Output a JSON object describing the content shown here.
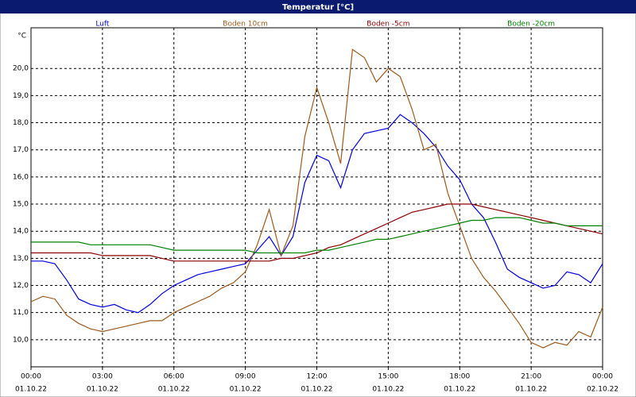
{
  "chart_data": {
    "type": "line",
    "title": "Temperatur [°C]",
    "y_unit": "°C",
    "x": [
      0,
      0.5,
      1,
      1.5,
      2,
      2.5,
      3,
      3.5,
      4,
      4.5,
      5,
      5.5,
      6,
      6.5,
      7,
      7.5,
      8,
      8.5,
      9,
      9.5,
      10,
      10.5,
      11,
      11.5,
      12,
      12.5,
      13,
      13.5,
      14,
      14.5,
      15,
      15.5,
      16,
      16.5,
      17,
      17.5,
      18,
      18.5,
      19,
      19.5,
      20,
      20.5,
      21,
      21.5,
      22,
      22.5,
      23,
      23.5,
      24
    ],
    "series": [
      {
        "name": "Luft",
        "color": "#0000dd",
        "values": [
          12.9,
          12.9,
          12.8,
          12.2,
          11.5,
          11.3,
          11.2,
          11.3,
          11.1,
          11.0,
          11.3,
          11.7,
          12.0,
          12.2,
          12.4,
          12.5,
          12.6,
          12.7,
          12.8,
          13.3,
          13.8,
          13.1,
          13.8,
          15.8,
          16.8,
          16.6,
          15.6,
          17.0,
          17.6,
          17.7,
          17.8,
          18.3,
          18.0,
          17.6,
          17.1,
          16.4,
          15.9,
          15.0,
          14.5,
          13.6,
          12.6,
          12.3,
          12.1,
          11.9,
          12.0,
          12.5,
          12.4,
          12.1,
          12.8
        ]
      },
      {
        "name": "Boden 10cm",
        "color": "#9a5a1e",
        "values": [
          11.4,
          11.6,
          11.5,
          10.9,
          10.6,
          10.4,
          10.3,
          10.4,
          10.5,
          10.6,
          10.7,
          10.7,
          11.0,
          11.2,
          11.4,
          11.6,
          11.9,
          12.1,
          12.5,
          13.5,
          14.8,
          13.1,
          14.2,
          17.5,
          19.3,
          18.0,
          16.5,
          20.7,
          20.4,
          19.5,
          20.0,
          19.7,
          18.5,
          17.0,
          17.2,
          15.4,
          14.2,
          13.0,
          12.3,
          11.8,
          11.2,
          10.6,
          9.9,
          9.7,
          9.9,
          9.8,
          10.3,
          10.1,
          11.2
        ]
      },
      {
        "name": "Boden -5cm",
        "color": "#8b0000",
        "values": [
          13.2,
          13.2,
          13.2,
          13.2,
          13.2,
          13.2,
          13.1,
          13.1,
          13.1,
          13.1,
          13.1,
          13.0,
          12.9,
          12.9,
          12.9,
          12.9,
          12.9,
          12.9,
          12.9,
          12.9,
          12.9,
          13.0,
          13.0,
          13.1,
          13.2,
          13.4,
          13.5,
          13.7,
          13.9,
          14.1,
          14.3,
          14.5,
          14.7,
          14.8,
          14.9,
          15.0,
          15.0,
          15.0,
          14.9,
          14.8,
          14.7,
          14.6,
          14.5,
          14.4,
          14.3,
          14.2,
          14.1,
          14.0,
          13.9
        ]
      },
      {
        "name": "Boden -20cm",
        "color": "#008000",
        "values": [
          13.6,
          13.6,
          13.6,
          13.6,
          13.6,
          13.5,
          13.5,
          13.5,
          13.5,
          13.5,
          13.5,
          13.4,
          13.3,
          13.3,
          13.3,
          13.3,
          13.3,
          13.3,
          13.3,
          13.2,
          13.2,
          13.2,
          13.2,
          13.2,
          13.3,
          13.3,
          13.4,
          13.5,
          13.6,
          13.7,
          13.7,
          13.8,
          13.9,
          14.0,
          14.1,
          14.2,
          14.3,
          14.4,
          14.4,
          14.5,
          14.5,
          14.5,
          14.4,
          14.3,
          14.3,
          14.2,
          14.2,
          14.2,
          14.2
        ]
      }
    ],
    "xlim": [
      0,
      24
    ],
    "xticks": [
      {
        "value": 0,
        "label": "00:00"
      },
      {
        "value": 3,
        "label": "03:00"
      },
      {
        "value": 6,
        "label": "06:00"
      },
      {
        "value": 9,
        "label": "09:00"
      },
      {
        "value": 12,
        "label": "12:00"
      },
      {
        "value": 15,
        "label": "15:00"
      },
      {
        "value": 18,
        "label": "18:00"
      },
      {
        "value": 21,
        "label": "21:00"
      },
      {
        "value": 24,
        "label": "00:00"
      }
    ],
    "xtick_dates": [
      "01.10.22",
      "01.10.22",
      "01.10.22",
      "01.10.22",
      "01.10.22",
      "01.10.22",
      "01.10.22",
      "01.10.22",
      "02.10.22"
    ],
    "ylim": [
      9,
      21.5
    ],
    "yticks": [
      {
        "value": 10,
        "label": "10,0"
      },
      {
        "value": 11,
        "label": "11,0"
      },
      {
        "value": 12,
        "label": "12,0"
      },
      {
        "value": 13,
        "label": "13,0"
      },
      {
        "value": 14,
        "label": "14,0"
      },
      {
        "value": 15,
        "label": "15,0"
      },
      {
        "value": 16,
        "label": "16,0"
      },
      {
        "value": 17,
        "label": "17,0"
      },
      {
        "value": 18,
        "label": "18,0"
      },
      {
        "value": 19,
        "label": "19,0"
      },
      {
        "value": 20,
        "label": "20,0"
      }
    ],
    "grid": true
  }
}
